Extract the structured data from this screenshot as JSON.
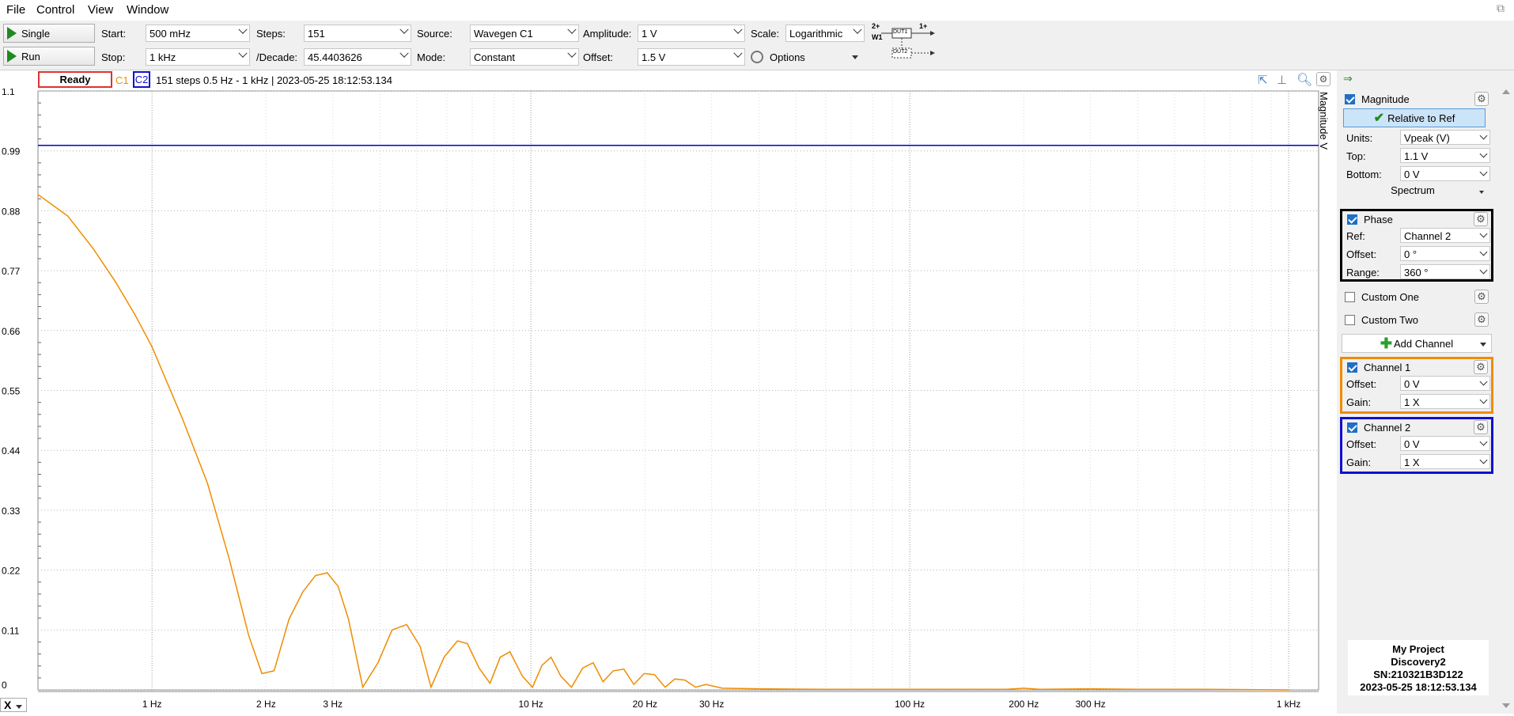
{
  "menu": [
    "File",
    "Control",
    "View",
    "Window"
  ],
  "toolbar": {
    "single_label": "Single",
    "run_label": "Run",
    "start_label": "Start:",
    "start_value": "500 mHz",
    "stop_label": "Stop:",
    "stop_value": "1 kHz",
    "steps_label": "Steps:",
    "steps_value": "151",
    "decade_label": "/Decade:",
    "decade_value": "45.4403626",
    "source_label": "Source:",
    "source_value": "Wavegen C1",
    "mode_label": "Mode:",
    "mode_value": "Constant",
    "amplitude_label": "Amplitude:",
    "amplitude_value": "1 V",
    "offset_label": "Offset:",
    "offset_value": "1.5 V",
    "scale_label": "Scale:",
    "scale_value": "Logarithmic",
    "options_label": "Options",
    "diagram": {
      "w1": "W1",
      "in": "2+",
      "out": "1+",
      "dut1": "DUT1",
      "dut2": "DUT2"
    }
  },
  "status": {
    "state": "Ready",
    "c1": "C1",
    "c2": "C2",
    "text": "151 steps  0.5 Hz - 1 kHz | 2023-05-25 18:12:53.134"
  },
  "plot": {
    "axis_title": "Magnitude V",
    "colors": {
      "c1": "#f08c00",
      "c2": "#0000d0",
      "grid": "#b0b0b0"
    }
  },
  "chart_data": {
    "type": "line",
    "x_scale": "log",
    "xlim": [
      0.5,
      1200
    ],
    "ylim": [
      0,
      1.1
    ],
    "y_ticks": [
      "1.1",
      "0.99",
      "0.88",
      "0.77",
      "0.66",
      "0.55",
      "0.44",
      "0.33",
      "0.22",
      "0.11",
      "0"
    ],
    "x_ticks": [
      {
        "v": 1,
        "label": "1 Hz"
      },
      {
        "v": 2,
        "label": "2 Hz"
      },
      {
        "v": 3,
        "label": "3 Hz"
      },
      {
        "v": 10,
        "label": "10 Hz"
      },
      {
        "v": 20,
        "label": "20 Hz"
      },
      {
        "v": 30,
        "label": "30 Hz"
      },
      {
        "v": 100,
        "label": "100 Hz"
      },
      {
        "v": 200,
        "label": "200 Hz"
      },
      {
        "v": 300,
        "label": "300 Hz"
      },
      {
        "v": 1000,
        "label": "1 kHz"
      }
    ],
    "major_grid_x": [
      1,
      10,
      100,
      1000
    ],
    "minor_grid_x": [
      2,
      3,
      4,
      5,
      6,
      7,
      8,
      9,
      20,
      30,
      40,
      50,
      60,
      70,
      80,
      90,
      200,
      300,
      400,
      500,
      600,
      700,
      800,
      900
    ],
    "series": [
      {
        "name": "C1",
        "x": [
          0.5,
          0.6,
          0.7,
          0.8,
          0.9,
          1.0,
          1.2,
          1.4,
          1.6,
          1.8,
          1.95,
          2.1,
          2.3,
          2.5,
          2.7,
          2.9,
          3.1,
          3.3,
          3.6,
          3.95,
          4.3,
          4.7,
          5.1,
          5.45,
          5.9,
          6.4,
          6.8,
          7.3,
          7.8,
          8.3,
          8.8,
          9.5,
          10.1,
          10.7,
          11.3,
          12.0,
          12.8,
          13.7,
          14.6,
          15.5,
          16.5,
          17.6,
          18.7,
          19.9,
          21.2,
          22.6,
          24.0,
          25.5,
          27.2,
          29.0,
          32,
          40,
          60,
          100,
          180,
          200,
          220,
          300,
          400,
          600,
          1000
        ],
        "y": [
          0.91,
          0.87,
          0.81,
          0.75,
          0.69,
          0.63,
          0.5,
          0.38,
          0.24,
          0.1,
          0.03,
          0.035,
          0.13,
          0.18,
          0.21,
          0.215,
          0.19,
          0.13,
          0.005,
          0.05,
          0.11,
          0.12,
          0.08,
          0.005,
          0.06,
          0.09,
          0.085,
          0.04,
          0.012,
          0.06,
          0.07,
          0.025,
          0.005,
          0.045,
          0.06,
          0.025,
          0.005,
          0.04,
          0.05,
          0.015,
          0.035,
          0.038,
          0.01,
          0.03,
          0.028,
          0.005,
          0.02,
          0.018,
          0.005,
          0.01,
          0.003,
          0.002,
          0.001,
          0.001,
          0.001,
          0.003,
          0.001,
          0.002,
          0.001,
          0.001,
          0.0
        ]
      },
      {
        "name": "C2",
        "x": [
          0.5,
          1200
        ],
        "y": [
          1.0,
          1.0
        ]
      }
    ]
  },
  "panel": {
    "magnitude": {
      "label": "Magnitude",
      "relative_button": "Relative to Ref",
      "units_label": "Units:",
      "units_value": "Vpeak (V)",
      "top_label": "Top:",
      "top_value": "1.1 V",
      "bottom_label": "Bottom:",
      "bottom_value": "0 V",
      "spectrum": "Spectrum"
    },
    "phase": {
      "label": "Phase",
      "ref_label": "Ref:",
      "ref_value": "Channel 2",
      "offset_label": "Offset:",
      "offset_value": "0 °",
      "range_label": "Range:",
      "range_value": "360 °",
      "border": "#000000"
    },
    "custom_one": "Custom One",
    "custom_two": "Custom Two",
    "add_channel": "Add Channel",
    "channel1": {
      "label": "Channel 1",
      "offset_label": "Offset:",
      "offset_value": "0 V",
      "gain_label": "Gain:",
      "gain_value": "1 X",
      "border": "#f08c00"
    },
    "channel2": {
      "label": "Channel 2",
      "offset_label": "Offset:",
      "offset_value": "0 V",
      "gain_label": "Gain:",
      "gain_value": "1 X",
      "border": "#1010d0"
    },
    "info": {
      "project": "My Project",
      "device": "Discovery2",
      "sn": "SN:210321B3D122",
      "time": "2023-05-25 18:12:53.134"
    }
  },
  "x_axis_button": "X"
}
